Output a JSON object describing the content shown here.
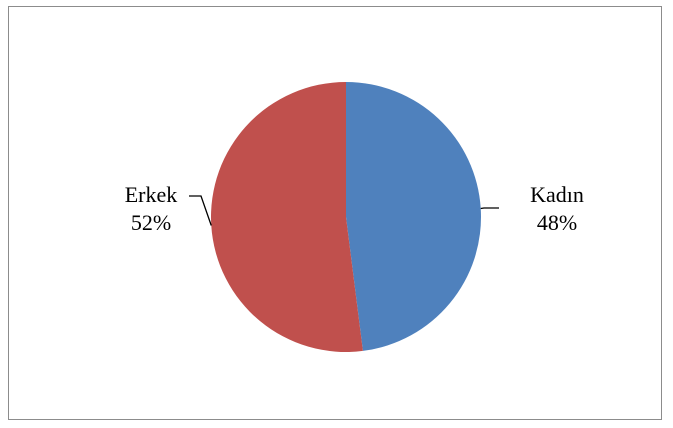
{
  "chart_data": {
    "type": "pie",
    "title": "",
    "start_angle_deg": 0,
    "direction": "clockwise",
    "slices": [
      {
        "label": "Kadın",
        "value": 48,
        "value_label": "48%",
        "color": "#4f81bd"
      },
      {
        "label": "Erkek",
        "value": 52,
        "value_label": "52%",
        "color": "#c0504d"
      }
    ],
    "legend": "none"
  }
}
